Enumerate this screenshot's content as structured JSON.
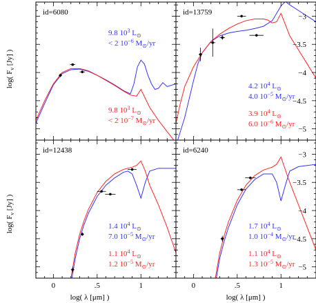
{
  "colors": {
    "blue": "#3333ff",
    "red": "#ff2222",
    "black": "#000000"
  },
  "axes": {
    "xlabel": "log( λ [μm] )",
    "ylabel": "log( F",
    "ylabel_sub": "ν",
    "ylabel_tail": " [Jy] )",
    "xlim": [
      -0.2,
      1.4
    ],
    "ylim": [
      -5.2,
      -2.75
    ],
    "xticks": [
      0,
      0.5,
      1
    ],
    "xtick_labels": [
      "0",
      ".5",
      "1"
    ],
    "yticks": [
      -3,
      -3.5,
      -4,
      -4.5,
      -5
    ],
    "ytick_labels": [
      "−3",
      "−3.5",
      "−4",
      "−4.5",
      "−5"
    ]
  },
  "chart_data": [
    {
      "type": "line",
      "panel_id": "id=6080",
      "grid": false,
      "xlim": [
        -0.2,
        1.4
      ],
      "ylim": [
        -5.2,
        -2.75
      ],
      "annotations": [
        {
          "color": "blue",
          "lines": [
            [
              "9.8 10",
              "3",
              " L",
              "⊙",
              ""
            ],
            [
              "< 2 10",
              "−6",
              " M",
              "⊙",
              "/yr"
            ]
          ]
        },
        {
          "color": "red",
          "lines": [
            [
              "9.8 10",
              "3",
              " L",
              "⊙",
              ""
            ],
            [
              "< 2 10",
              "−7",
              " M",
              "⊙",
              "/yr"
            ]
          ]
        }
      ],
      "points": [
        {
          "x": 0.08,
          "y": -4.05,
          "xerr": 0.02,
          "yerr": 0.03
        },
        {
          "x": 0.22,
          "y": -3.86,
          "xerr": 0.03,
          "yerr": 0.02
        },
        {
          "x": 0.33,
          "y": -3.99,
          "xerr": 0.03,
          "yerr": 0.02
        }
      ],
      "series": [
        {
          "color": "blue",
          "x": [
            -0.2,
            -0.1,
            0,
            0.1,
            0.2,
            0.3,
            0.4,
            0.5,
            0.6,
            0.7,
            0.8,
            0.88,
            0.92,
            0.96,
            1.0,
            1.04,
            1.08,
            1.12,
            1.16,
            1.2,
            1.25,
            1.3,
            1.4
          ],
          "y": [
            -4.9,
            -4.55,
            -4.22,
            -4.02,
            -3.95,
            -3.94,
            -3.98,
            -4.05,
            -4.13,
            -4.22,
            -4.32,
            -4.38,
            -4.2,
            -3.9,
            -3.78,
            -3.85,
            -4.05,
            -4.2,
            -4.3,
            -4.28,
            -4.18,
            -4.25,
            -4.2
          ]
        },
        {
          "color": "red",
          "x": [
            -0.2,
            -0.1,
            0,
            0.1,
            0.2,
            0.3,
            0.4,
            0.5,
            0.6,
            0.7,
            0.8,
            0.88,
            0.95,
            1.0,
            1.1,
            1.2,
            1.3,
            1.4
          ],
          "y": [
            -4.85,
            -4.5,
            -4.2,
            -4.0,
            -3.93,
            -3.93,
            -3.97,
            -4.05,
            -4.14,
            -4.23,
            -4.33,
            -4.4,
            -4.42,
            -4.3,
            -4.62,
            -4.85,
            -5.05,
            -5.25
          ]
        }
      ]
    },
    {
      "type": "line",
      "panel_id": "id=13759",
      "grid": false,
      "xlim": [
        -0.2,
        1.4
      ],
      "ylim": [
        -5.2,
        -2.75
      ],
      "annotations": [
        {
          "color": "blue",
          "lines": [
            [
              "4.2 10",
              "4",
              " L",
              "⊙",
              ""
            ],
            [
              "4.0 10",
              "−5",
              " M",
              "⊙",
              "/yr"
            ]
          ]
        },
        {
          "color": "red",
          "lines": [
            [
              "3.9 10",
              "4",
              " L",
              "⊙",
              ""
            ],
            [
              "6.0 10",
              "−6",
              " M",
              "⊙",
              "/yr"
            ]
          ]
        }
      ],
      "points": [
        {
          "x": 0.08,
          "y": -3.68,
          "xerr": 0.02,
          "yerr": 0.12
        },
        {
          "x": 0.22,
          "y": -3.47,
          "xerr": 0.03,
          "yerr": 0.25
        },
        {
          "x": 0.33,
          "y": -3.38,
          "xerr": 0.03,
          "yerr": 0.04
        },
        {
          "x": 0.55,
          "y": -3.0,
          "xerr": 0.05,
          "yerr": 0.02
        },
        {
          "x": 0.72,
          "y": -3.34,
          "xerr": 0.08,
          "yerr": 0.02
        }
      ],
      "series": [
        {
          "color": "blue",
          "x": [
            -0.2,
            -0.1,
            0,
            0.05,
            0.1,
            0.2,
            0.3,
            0.4,
            0.5,
            0.6,
            0.7,
            0.8,
            0.9,
            0.95,
            1.0,
            1.05,
            1.1,
            1.2,
            1.3,
            1.4
          ],
          "y": [
            -5.3,
            -4.8,
            -4.15,
            -3.85,
            -3.65,
            -3.45,
            -3.35,
            -3.3,
            -3.27,
            -3.25,
            -3.22,
            -3.18,
            -3.08,
            -2.95,
            -2.82,
            -2.74,
            -2.8,
            -2.9,
            -3.0,
            -3.1
          ]
        },
        {
          "color": "red",
          "x": [
            -0.2,
            -0.15,
            -0.1,
            0,
            0.1,
            0.2,
            0.3,
            0.4,
            0.5,
            0.6,
            0.7,
            0.8,
            0.85,
            0.9,
            0.95,
            1.0,
            1.05,
            1.1,
            1.2,
            1.3,
            1.4
          ],
          "y": [
            -4.9,
            -4.55,
            -4.25,
            -3.9,
            -3.65,
            -3.45,
            -3.32,
            -3.22,
            -3.14,
            -3.08,
            -3.05,
            -3.05,
            -3.07,
            -3.12,
            -3.1,
            -2.95,
            -3.15,
            -3.35,
            -3.6,
            -3.85,
            -4.1
          ]
        }
      ]
    },
    {
      "type": "line",
      "panel_id": "id=12438",
      "grid": false,
      "xlim": [
        -0.2,
        1.4
      ],
      "ylim": [
        -5.2,
        -2.75
      ],
      "annotations": [
        {
          "color": "blue",
          "lines": [
            [
              "1.4 10",
              "4",
              " L",
              "⊙",
              ""
            ],
            [
              "7.0 10",
              "−5",
              " M",
              "⊙",
              "/yr"
            ]
          ]
        },
        {
          "color": "red",
          "lines": [
            [
              "1.1 10",
              "4",
              " L",
              "⊙",
              ""
            ],
            [
              "1.2 10",
              "−5",
              " M",
              "⊙",
              "/yr"
            ]
          ]
        }
      ],
      "points": [
        {
          "x": 0.22,
          "y": -5.05,
          "xerr": 0.02,
          "yerr": 0.05
        },
        {
          "x": 0.33,
          "y": -4.42,
          "xerr": 0.02,
          "yerr": 0.03
        },
        {
          "x": 0.55,
          "y": -3.66,
          "xerr": 0.05,
          "yerr": 0.02
        },
        {
          "x": 0.65,
          "y": -3.71,
          "xerr": 0.06,
          "yerr": 0.02
        },
        {
          "x": 0.9,
          "y": -3.27,
          "xerr": 0.05,
          "yerr": 0.02
        }
      ],
      "series": [
        {
          "color": "blue",
          "x": [
            0.2,
            0.25,
            0.3,
            0.35,
            0.4,
            0.5,
            0.6,
            0.7,
            0.8,
            0.85,
            0.9,
            0.95,
            1.0,
            1.05,
            1.1,
            1.2,
            1.3,
            1.4
          ],
          "y": [
            -5.3,
            -4.85,
            -4.5,
            -4.25,
            -4.05,
            -3.75,
            -3.55,
            -3.42,
            -3.32,
            -3.3,
            -3.35,
            -3.55,
            -3.78,
            -3.5,
            -3.3,
            -3.25,
            -3.25,
            -3.25
          ]
        },
        {
          "color": "red",
          "x": [
            0.2,
            0.25,
            0.3,
            0.35,
            0.4,
            0.5,
            0.6,
            0.7,
            0.8,
            0.9,
            0.95,
            1.0,
            1.05,
            1.1,
            1.2,
            1.3,
            1.4
          ],
          "y": [
            -5.2,
            -4.75,
            -4.42,
            -4.18,
            -3.98,
            -3.68,
            -3.48,
            -3.35,
            -3.27,
            -3.23,
            -3.2,
            -3.12,
            -3.3,
            -3.55,
            -3.9,
            -4.3,
            -4.75
          ]
        }
      ]
    },
    {
      "type": "line",
      "panel_id": "id=6240",
      "grid": false,
      "xlim": [
        -0.2,
        1.4
      ],
      "ylim": [
        -5.2,
        -2.75
      ],
      "annotations": [
        {
          "color": "blue",
          "lines": [
            [
              "1.7 10",
              "4",
              " L",
              "⊙",
              ""
            ],
            [
              "1.0 10",
              "−4",
              " M",
              "⊙",
              "/yr"
            ]
          ]
        },
        {
          "color": "red",
          "lines": [
            [
              "1.1 10",
              "4",
              " L",
              "⊙",
              ""
            ],
            [
              "1.3 10",
              "−5",
              " M",
              "⊙",
              "/yr"
            ]
          ]
        }
      ],
      "points": [
        {
          "x": 0.33,
          "y": -4.5,
          "xerr": 0.02,
          "yerr": 0.05
        },
        {
          "x": 0.55,
          "y": -3.63,
          "xerr": 0.05,
          "yerr": 0.02
        },
        {
          "x": 0.65,
          "y": -3.42,
          "xerr": 0.06,
          "yerr": 0.02
        }
      ],
      "series": [
        {
          "color": "blue",
          "x": [
            0.25,
            0.3,
            0.35,
            0.4,
            0.5,
            0.6,
            0.7,
            0.8,
            0.9,
            0.95,
            1.0,
            1.05,
            1.1,
            1.2,
            1.3,
            1.4
          ],
          "y": [
            -5.3,
            -4.85,
            -4.55,
            -4.3,
            -3.9,
            -3.62,
            -3.45,
            -3.35,
            -3.35,
            -3.5,
            -3.83,
            -3.55,
            -3.3,
            -3.22,
            -3.2,
            -3.18
          ]
        },
        {
          "color": "red",
          "x": [
            0.25,
            0.3,
            0.35,
            0.4,
            0.5,
            0.6,
            0.7,
            0.8,
            0.9,
            0.95,
            1.0,
            1.05,
            1.1,
            1.2,
            1.3,
            1.4
          ],
          "y": [
            -5.2,
            -4.75,
            -4.45,
            -4.2,
            -3.82,
            -3.55,
            -3.38,
            -3.28,
            -3.23,
            -3.18,
            -3.05,
            -3.28,
            -3.5,
            -3.9,
            -4.3,
            -4.7
          ]
        }
      ]
    }
  ]
}
